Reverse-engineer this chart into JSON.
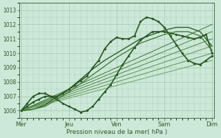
{
  "bg_color": "#cce8d8",
  "grid_color": "#a8cdb8",
  "line_color_dark": "#2d5a27",
  "xlabel": "Pression niveau de la mer( hPa )",
  "xtick_labels": [
    "Mer",
    "Jeu",
    "Ven",
    "Sam",
    "Dim"
  ],
  "xtick_positions": [
    0,
    48,
    96,
    144,
    192
  ],
  "ylim": [
    1005.5,
    1013.5
  ],
  "xlim": [
    -2,
    194
  ],
  "yticks": [
    1006,
    1007,
    1008,
    1009,
    1010,
    1011,
    1012,
    1013
  ],
  "series": [
    {
      "x": [
        0,
        192
      ],
      "y": [
        1006.0,
        1012.0
      ],
      "style": "-",
      "lw": 0.7,
      "color": "#3a7030"
    },
    {
      "x": [
        0,
        192
      ],
      "y": [
        1006.0,
        1011.5
      ],
      "style": "-",
      "lw": 0.7,
      "color": "#4a8040"
    },
    {
      "x": [
        0,
        192
      ],
      "y": [
        1006.0,
        1011.0
      ],
      "style": "-",
      "lw": 0.7,
      "color": "#4a8040"
    },
    {
      "x": [
        0,
        192
      ],
      "y": [
        1006.0,
        1010.5
      ],
      "style": "-",
      "lw": 0.7,
      "color": "#5a9050"
    },
    {
      "x": [
        0,
        192
      ],
      "y": [
        1006.0,
        1010.0
      ],
      "style": "-",
      "lw": 0.7,
      "color": "#5a9050"
    },
    {
      "x": [
        0,
        192
      ],
      "y": [
        1006.0,
        1009.5
      ],
      "style": "-",
      "lw": 0.7,
      "color": "#6aa060"
    },
    {
      "x": [
        0,
        6,
        12,
        18,
        24,
        30,
        36,
        42,
        48,
        54,
        60,
        66,
        72,
        78,
        84,
        90,
        96,
        102,
        108,
        114,
        120,
        126,
        132,
        138,
        144,
        150,
        156,
        162,
        168,
        174,
        180,
        186,
        192
      ],
      "y": [
        1006.0,
        1006.5,
        1007.0,
        1007.2,
        1007.2,
        1007.0,
        1007.0,
        1007.2,
        1007.5,
        1007.8,
        1008.1,
        1008.4,
        1009.0,
        1009.5,
        1010.3,
        1010.8,
        1011.1,
        1011.0,
        1011.0,
        1011.2,
        1012.2,
        1012.5,
        1012.4,
        1012.2,
        1011.8,
        1011.2,
        1010.6,
        1010.0,
        1009.5,
        1009.3,
        1009.2,
        1009.5,
        1009.8
      ],
      "style": "-",
      "lw": 1.3,
      "color": "#2d5a27",
      "marker": ".",
      "ms": 2.8
    },
    {
      "x": [
        0,
        6,
        12,
        18,
        24,
        30,
        36,
        42,
        48,
        54,
        60,
        66,
        72,
        78,
        84,
        90,
        96,
        102,
        108,
        114,
        120,
        126,
        132,
        138,
        144,
        150,
        156,
        162,
        168,
        174,
        180,
        186,
        192
      ],
      "y": [
        1006.0,
        1006.3,
        1006.6,
        1006.8,
        1007.0,
        1007.0,
        1006.8,
        1006.5,
        1006.3,
        1006.1,
        1005.9,
        1006.0,
        1006.3,
        1006.8,
        1007.3,
        1007.8,
        1008.5,
        1009.2,
        1009.8,
        1010.4,
        1010.9,
        1011.2,
        1011.5,
        1011.5,
        1011.5,
        1011.4,
        1011.3,
        1011.2,
        1011.1,
        1011.0,
        1011.1,
        1011.3,
        1010.0
      ],
      "style": "-",
      "lw": 1.3,
      "color": "#2d5a27",
      "marker": ".",
      "ms": 2.8
    },
    {
      "x": [
        0,
        12,
        24,
        36,
        48,
        60,
        72,
        84,
        96,
        108,
        120,
        132,
        144,
        156,
        168,
        180,
        192
      ],
      "y": [
        1006.0,
        1006.1,
        1006.4,
        1007.0,
        1007.5,
        1008.2,
        1008.9,
        1009.5,
        1010.0,
        1010.5,
        1011.0,
        1011.3,
        1011.6,
        1011.8,
        1011.8,
        1011.5,
        1010.5
      ],
      "style": "-",
      "lw": 1.0,
      "color": "#2d5a27"
    },
    {
      "x": [
        0,
        12,
        24,
        36,
        48,
        60,
        72,
        84,
        96,
        108,
        120,
        132,
        144,
        156,
        168,
        180,
        192
      ],
      "y": [
        1006.0,
        1006.1,
        1006.3,
        1006.8,
        1007.3,
        1007.9,
        1008.5,
        1009.1,
        1009.7,
        1010.2,
        1010.7,
        1011.0,
        1011.3,
        1011.5,
        1011.5,
        1011.2,
        1010.2
      ],
      "style": "-",
      "lw": 0.9,
      "color": "#3a7030"
    }
  ]
}
